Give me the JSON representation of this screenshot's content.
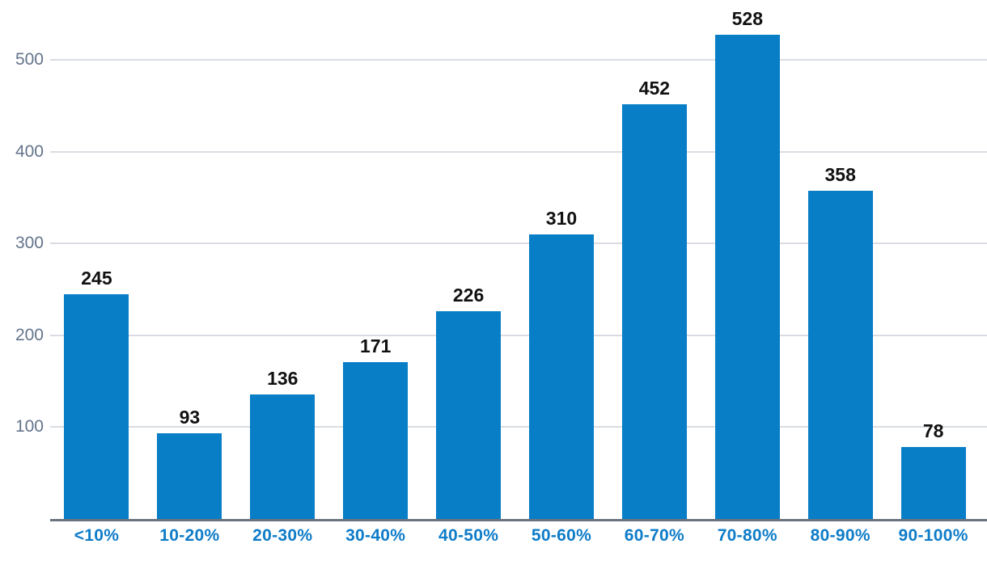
{
  "chart_data": {
    "type": "bar",
    "categories": [
      "<10%",
      "10-20%",
      "20-30%",
      "30-40%",
      "40-50%",
      "50-60%",
      "60-70%",
      "70-80%",
      "80-90%",
      "90-100%"
    ],
    "values": [
      245,
      93,
      136,
      171,
      226,
      310,
      452,
      528,
      358,
      78
    ],
    "title": "",
    "xlabel": "",
    "ylabel": "",
    "yticks": [
      100,
      200,
      300,
      400,
      500
    ],
    "ylim": [
      0,
      566
    ],
    "grid": true,
    "legend": false,
    "value_labels_shown": true,
    "colors": {
      "bar": "#077ec6",
      "value_label": "#111111",
      "x_tick_label": "#0e7cc8",
      "y_tick_label": "#64748c",
      "gridline": "#d9dde3",
      "axis_line": "#6b7380",
      "background": "#ffffff"
    }
  }
}
